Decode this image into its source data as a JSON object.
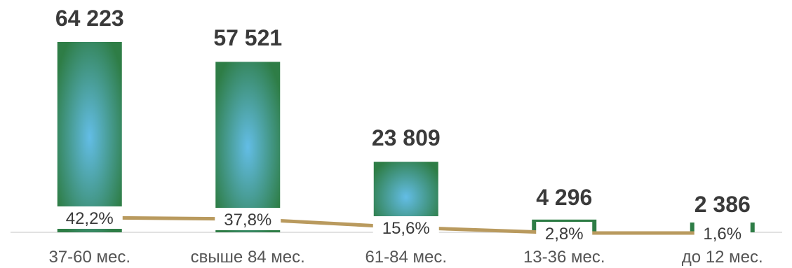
{
  "chart_data": {
    "type": "bar",
    "categories": [
      "37-60 мес.",
      "свыше 84 мес.",
      "61-84 мес.",
      "13-36 мес.",
      "до 12 мес."
    ],
    "values": [
      64223,
      57521,
      23809,
      4296,
      2386
    ],
    "value_labels": [
      "64 223",
      "57 521",
      "23 809",
      "4 296",
      "2 386"
    ],
    "secondary_series": {
      "type": "line",
      "values": [
        42.2,
        37.8,
        15.6,
        2.8,
        1.6
      ],
      "labels": [
        "42,2%",
        "37,8%",
        "15,6%",
        "2,8%",
        "1,6%"
      ]
    },
    "title": "",
    "xlabel": "",
    "ylabel": "",
    "ylim": [
      0,
      64223
    ],
    "grid": false,
    "legend": "none",
    "colors": {
      "bar_edge": "#2e7d46",
      "bar_center": "#63bde6",
      "line": "#b99a5e",
      "axis": "#d9d9d9",
      "value_text": "#3a3a3a",
      "category_text": "#555555"
    }
  }
}
